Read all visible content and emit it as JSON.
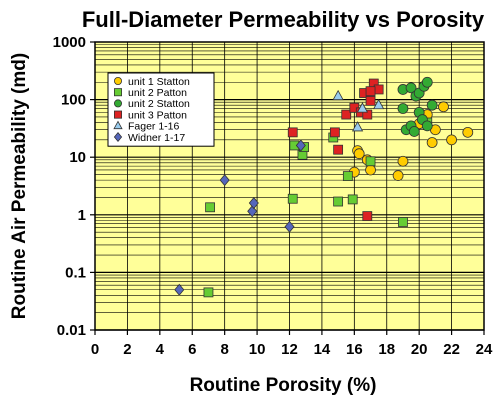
{
  "chart_data": {
    "type": "scatter",
    "title": "Full-Diameter Permeability vs Porosity",
    "xlabel": "Routine Porosity (%)",
    "ylabel": "Routine Air Permeability (md)",
    "xlim": [
      0,
      24
    ],
    "ylim": [
      0.01,
      1000
    ],
    "y_scale": "log",
    "x_ticks": [
      "0",
      "2",
      "4",
      "6",
      "8",
      "10",
      "12",
      "14",
      "16",
      "18",
      "20",
      "22",
      "24"
    ],
    "y_ticks": [
      "0.01",
      "0.1",
      "1",
      "10",
      "100",
      "1000"
    ],
    "grid": true,
    "legend_position": "top-left",
    "background_color": "#ffff99",
    "series": [
      {
        "name": "unit 1 Statton",
        "marker": "circle",
        "color": "#ffcc00",
        "points": [
          [
            16.2,
            13
          ],
          [
            16.3,
            11.5
          ],
          [
            16.0,
            5.5
          ],
          [
            17.0,
            6.0
          ],
          [
            16.8,
            9.0
          ],
          [
            18.7,
            4.8
          ],
          [
            19.0,
            8.5
          ],
          [
            20.5,
            55
          ],
          [
            21.0,
            30
          ],
          [
            20.8,
            18
          ],
          [
            21.5,
            75
          ],
          [
            22.0,
            20
          ],
          [
            23.0,
            27
          ],
          [
            20.0,
            38
          ]
        ]
      },
      {
        "name": "unit 2 Patton",
        "marker": "square",
        "color": "#66cc33",
        "points": [
          [
            7.0,
            0.045
          ],
          [
            7.1,
            1.35
          ],
          [
            12.2,
            1.9
          ],
          [
            12.3,
            16
          ],
          [
            12.8,
            11
          ],
          [
            12.9,
            15
          ],
          [
            14.7,
            22
          ],
          [
            15.0,
            1.7
          ],
          [
            15.6,
            4.7
          ],
          [
            15.9,
            1.85
          ],
          [
            17.0,
            8.5
          ],
          [
            19.0,
            0.75
          ],
          [
            20.5,
            40
          ]
        ]
      },
      {
        "name": "unit 2 Statton",
        "marker": "circle",
        "color": "#33aa33",
        "points": [
          [
            19.0,
            150
          ],
          [
            19.5,
            160
          ],
          [
            19.8,
            115
          ],
          [
            20.0,
            130
          ],
          [
            20.3,
            170
          ],
          [
            20.5,
            200
          ],
          [
            20.8,
            80
          ],
          [
            19.0,
            70
          ],
          [
            19.2,
            30
          ],
          [
            19.5,
            35
          ],
          [
            19.7,
            28
          ],
          [
            20.0,
            60
          ],
          [
            20.2,
            45
          ],
          [
            20.5,
            35
          ]
        ]
      },
      {
        "name": "unit 3 Patton",
        "marker": "square",
        "color": "#dd2222",
        "points": [
          [
            12.2,
            27
          ],
          [
            14.8,
            27
          ],
          [
            15.0,
            13.5
          ],
          [
            15.5,
            55
          ],
          [
            16.0,
            72
          ],
          [
            16.4,
            60
          ],
          [
            16.6,
            130
          ],
          [
            16.8,
            55
          ],
          [
            17.0,
            95
          ],
          [
            17.2,
            190
          ],
          [
            17.5,
            150
          ],
          [
            16.8,
            0.95
          ],
          [
            17.0,
            140
          ]
        ]
      },
      {
        "name": "Fager 1-16",
        "marker": "triangle",
        "color": "#99ccee",
        "points": [
          [
            15.0,
            115
          ],
          [
            16.2,
            33
          ],
          [
            16.5,
            70
          ],
          [
            17.5,
            80
          ]
        ]
      },
      {
        "name": "Widner 1-17",
        "marker": "diamond",
        "color": "#5566bb",
        "points": [
          [
            5.2,
            0.05
          ],
          [
            8.0,
            4.0
          ],
          [
            9.7,
            1.15
          ],
          [
            9.8,
            1.6
          ],
          [
            12.0,
            0.62
          ],
          [
            12.7,
            16
          ]
        ]
      }
    ]
  }
}
